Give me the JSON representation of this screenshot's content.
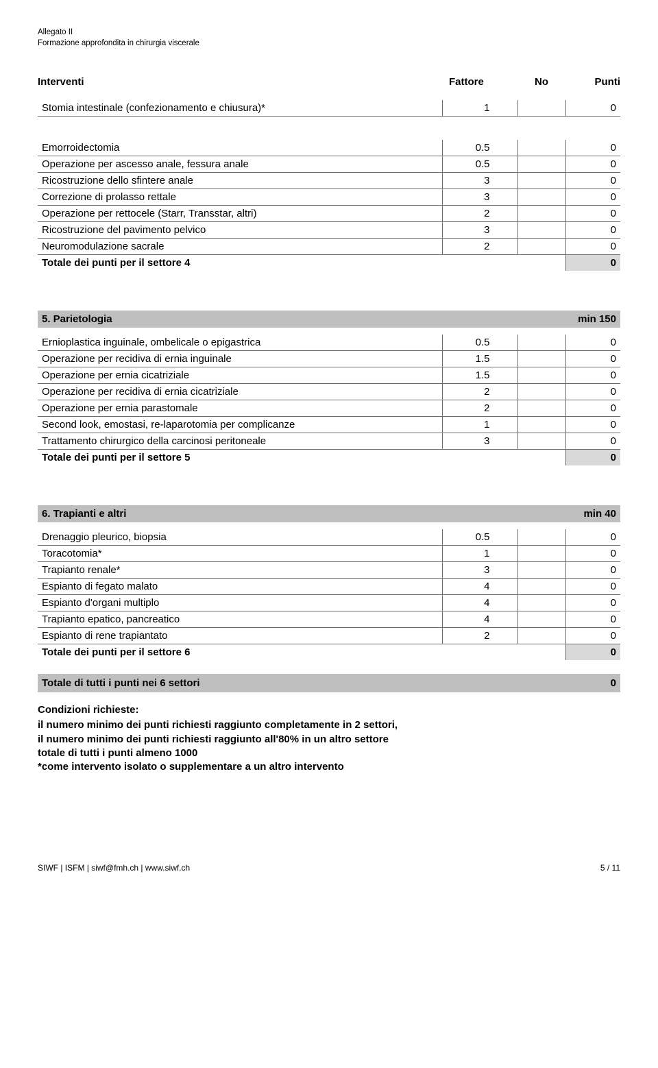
{
  "header": {
    "line1": "Allegato II",
    "line2": "Formazione approfondita in chirurgia viscerale"
  },
  "columnHeaders": {
    "c1": "Interventi",
    "c2": "Fattore",
    "c3": "No",
    "c4": "Punti"
  },
  "table0": {
    "rows": [
      {
        "label": "Stomia intestinale (confezionamento e chiusura)*",
        "f": "1",
        "p": "0"
      }
    ]
  },
  "table1": {
    "rows": [
      {
        "label": "Emorroidectomia",
        "f": "0.5",
        "p": "0"
      },
      {
        "label": "Operazione per ascesso anale, fessura anale",
        "f": "0.5",
        "p": "0"
      },
      {
        "label": "Ricostruzione dello sfintere anale",
        "f": "3",
        "p": "0"
      },
      {
        "label": "Correzione di prolasso rettale",
        "f": "3",
        "p": "0"
      },
      {
        "label": "Operazione per rettocele (Starr, Transstar, altri)",
        "f": "2",
        "p": "0"
      },
      {
        "label": "Ricostruzione del pavimento pelvico",
        "f": "3",
        "p": "0"
      },
      {
        "label": "Neuromodulazione sacrale",
        "f": "2",
        "p": "0"
      }
    ],
    "total": {
      "label": "Totale dei punti per il settore 4",
      "value": "0"
    }
  },
  "section5": {
    "title": "5. Parietologia",
    "min": "min 150"
  },
  "table5": {
    "rows": [
      {
        "label": "Ernioplastica inguinale, ombelicale o epigastrica",
        "f": "0.5",
        "p": "0"
      },
      {
        "label": "Operazione per recidiva di ernia inguinale",
        "f": "1.5",
        "p": "0"
      },
      {
        "label": "Operazione per ernia cicatriziale",
        "f": "1.5",
        "p": "0"
      },
      {
        "label": "Operazione per recidiva di ernia cicatriziale",
        "f": "2",
        "p": "0"
      },
      {
        "label": "Operazione per ernia parastomale",
        "f": "2",
        "p": "0"
      },
      {
        "label": "Second look, emostasi, re-laparotomia per complicanze",
        "f": "1",
        "p": "0"
      },
      {
        "label": "Trattamento chirurgico della carcinosi peritoneale",
        "f": "3",
        "p": "0"
      }
    ],
    "total": {
      "label": "Totale dei punti per il settore 5",
      "value": "0"
    }
  },
  "section6": {
    "title": "6. Trapianti e altri",
    "min": "min 40"
  },
  "table6": {
    "rows": [
      {
        "label": "Drenaggio pleurico, biopsia",
        "f": "0.5",
        "p": "0"
      },
      {
        "label": "Toracotomia*",
        "f": "1",
        "p": "0"
      },
      {
        "label": "Trapianto renale*",
        "f": "3",
        "p": "0"
      },
      {
        "label": "Espianto di fegato malato",
        "f": "4",
        "p": "0"
      },
      {
        "label": "Espianto d'organi multiplo",
        "f": "4",
        "p": "0"
      },
      {
        "label": "Trapianto epatico, pancreatico",
        "f": "4",
        "p": "0"
      },
      {
        "label": "Espianto di rene trapiantato",
        "f": "2",
        "p": "0"
      }
    ],
    "total": {
      "label": "Totale dei punti per il settore 6",
      "value": "0"
    }
  },
  "grandTotal": {
    "label": "Totale di tutti i punti nei 6 settori",
    "value": "0"
  },
  "conditions": {
    "title": "Condizioni richieste:",
    "lines": [
      "il numero minimo dei punti richiesti raggiunto completamente in 2 settori,",
      "il numero minimo dei punti richiesti raggiunto all'80% in un altro settore",
      "totale di tutti i punti almeno 1000",
      "*come intervento isolato o supplementare a un altro intervento"
    ]
  },
  "footer": {
    "left": "SIWF  |  ISFM  |  siwf@fmh.ch  |  www.siwf.ch",
    "right": "5 / 11"
  }
}
